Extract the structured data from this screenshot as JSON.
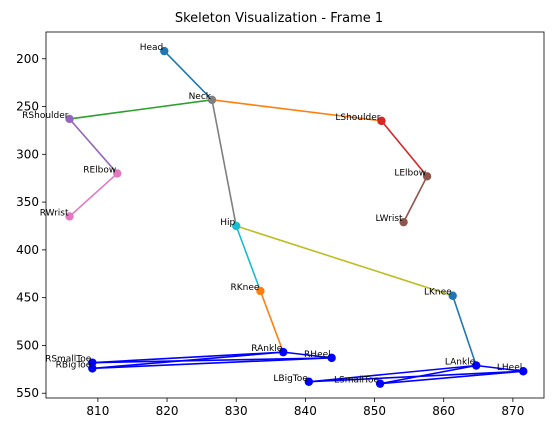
{
  "chart_data": {
    "type": "scatter",
    "title": "Skeleton Visualization - Frame 1",
    "xlabel": "",
    "ylabel": "",
    "xlim": [
      802.5,
      874.5
    ],
    "ylim": [
      555,
      172
    ],
    "y_inverted": true,
    "grid": false,
    "x_ticks": [
      810,
      820,
      830,
      840,
      850,
      860,
      870
    ],
    "y_ticks": [
      200,
      250,
      300,
      350,
      400,
      450,
      500,
      550
    ],
    "joints": [
      {
        "name": "Head",
        "x": 819.6,
        "y": 192,
        "color": "#1f77b4"
      },
      {
        "name": "Neck",
        "x": 826.5,
        "y": 243,
        "color": "#7f7f7f"
      },
      {
        "name": "RShoulder",
        "x": 805.9,
        "y": 263,
        "color": "#9467bd"
      },
      {
        "name": "RElbow",
        "x": 812.8,
        "y": 320,
        "color": "#e377c2"
      },
      {
        "name": "RWrist",
        "x": 805.9,
        "y": 365,
        "color": "#e377c2"
      },
      {
        "name": "LShoulder",
        "x": 851.0,
        "y": 265,
        "color": "#d62728"
      },
      {
        "name": "LElbow",
        "x": 857.6,
        "y": 323,
        "color": "#8c564b"
      },
      {
        "name": "LWrist",
        "x": 854.2,
        "y": 371,
        "color": "#8c564b"
      },
      {
        "name": "Hip",
        "x": 830.0,
        "y": 375,
        "color": "#17becf"
      },
      {
        "name": "RKnee",
        "x": 833.5,
        "y": 443,
        "color": "#ff7f0e"
      },
      {
        "name": "RAnkle",
        "x": 836.8,
        "y": 507,
        "color": "#0000ff"
      },
      {
        "name": "LKnee",
        "x": 861.3,
        "y": 448,
        "color": "#1f77b4"
      },
      {
        "name": "LAnkle",
        "x": 864.7,
        "y": 521,
        "color": "#0000ff"
      },
      {
        "name": "RHeel",
        "x": 843.8,
        "y": 513,
        "color": "#0000ff"
      },
      {
        "name": "RSmallToe",
        "x": 809.2,
        "y": 518,
        "color": "#0000ff"
      },
      {
        "name": "RBigToe",
        "x": 809.2,
        "y": 524,
        "color": "#0000ff"
      },
      {
        "name": "LHeel",
        "x": 871.5,
        "y": 527,
        "color": "#0000ff"
      },
      {
        "name": "LBigToe",
        "x": 840.5,
        "y": 538,
        "color": "#0000ff"
      },
      {
        "name": "LSmallToe",
        "x": 850.8,
        "y": 540,
        "color": "#0000ff"
      }
    ],
    "bones": [
      {
        "from": "Head",
        "to": "Neck",
        "color": "#1f77b4"
      },
      {
        "from": "Neck",
        "to": "LShoulder",
        "color": "#ff7f0e"
      },
      {
        "from": "Neck",
        "to": "RShoulder",
        "color": "#2ca02c"
      },
      {
        "from": "LShoulder",
        "to": "LElbow",
        "color": "#d62728"
      },
      {
        "from": "RShoulder",
        "to": "RElbow",
        "color": "#9467bd"
      },
      {
        "from": "LElbow",
        "to": "LWrist",
        "color": "#8c564b"
      },
      {
        "from": "RElbow",
        "to": "RWrist",
        "color": "#e377c2"
      },
      {
        "from": "Neck",
        "to": "Hip",
        "color": "#7f7f7f"
      },
      {
        "from": "Hip",
        "to": "LKnee",
        "color": "#bcbd22"
      },
      {
        "from": "Hip",
        "to": "RKnee",
        "color": "#17becf"
      },
      {
        "from": "LKnee",
        "to": "LAnkle",
        "color": "#1f77b4"
      },
      {
        "from": "RKnee",
        "to": "RAnkle",
        "color": "#ff7f0e"
      },
      {
        "from": "RAnkle",
        "to": "RHeel",
        "color": "#0000ff"
      },
      {
        "from": "RHeel",
        "to": "RSmallToe",
        "color": "#0000ff"
      },
      {
        "from": "RSmallToe",
        "to": "RAnkle",
        "color": "#0000ff"
      },
      {
        "from": "RAnkle",
        "to": "RBigToe",
        "color": "#0000ff"
      },
      {
        "from": "RBigToe",
        "to": "RHeel",
        "color": "#0000ff"
      },
      {
        "from": "LAnkle",
        "to": "LHeel",
        "color": "#0000ff"
      },
      {
        "from": "LHeel",
        "to": "LBigToe",
        "color": "#0000ff"
      },
      {
        "from": "LBigToe",
        "to": "LAnkle",
        "color": "#0000ff"
      },
      {
        "from": "LAnkle",
        "to": "LSmallToe",
        "color": "#0000ff"
      },
      {
        "from": "LSmallToe",
        "to": "LHeel",
        "color": "#0000ff"
      }
    ]
  }
}
